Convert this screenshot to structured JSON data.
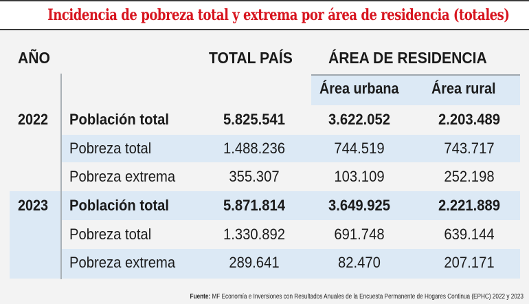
{
  "title": "Incidencia de pobreza total y extrema por área de residencia (totales)",
  "header": {
    "year": "AÑO",
    "total_country": "TOTAL PAÍS",
    "residence_area": "ÁREA DE RESIDENCIA",
    "urban": "Área urbana",
    "rural": "Área rural"
  },
  "years": [
    {
      "year": "2022",
      "rows": [
        {
          "label": "Población total",
          "total": "5.825.541",
          "urban": "3.622.052",
          "rural": "2.203.489"
        },
        {
          "label": "Pobreza total",
          "total": "1.488.236",
          "urban": "744.519",
          "rural": "743.717"
        },
        {
          "label": "Pobreza extrema",
          "total": "355.307",
          "urban": "103.109",
          "rural": "252.198"
        }
      ]
    },
    {
      "year": "2023",
      "rows": [
        {
          "label": "Población total",
          "total": "5.871.814",
          "urban": "3.649.925",
          "rural": "2.221.889"
        },
        {
          "label": "Pobreza total",
          "total": "1.330.892",
          "urban": "691.748",
          "rural": "639.144"
        },
        {
          "label": "Pobreza extrema",
          "total": "289.641",
          "urban": "82.470",
          "rural": "207.171"
        }
      ]
    }
  ],
  "source": {
    "label": "Fuente:",
    "text": " MF Economía e Inversiones con Resultados Anuales de la Encuesta Permanente de Hogares Continua (EPHC) 2022 y 2023"
  },
  "colors": {
    "title": "#d7141e",
    "band": "#dce9f5",
    "background": "#f3f3f3"
  }
}
